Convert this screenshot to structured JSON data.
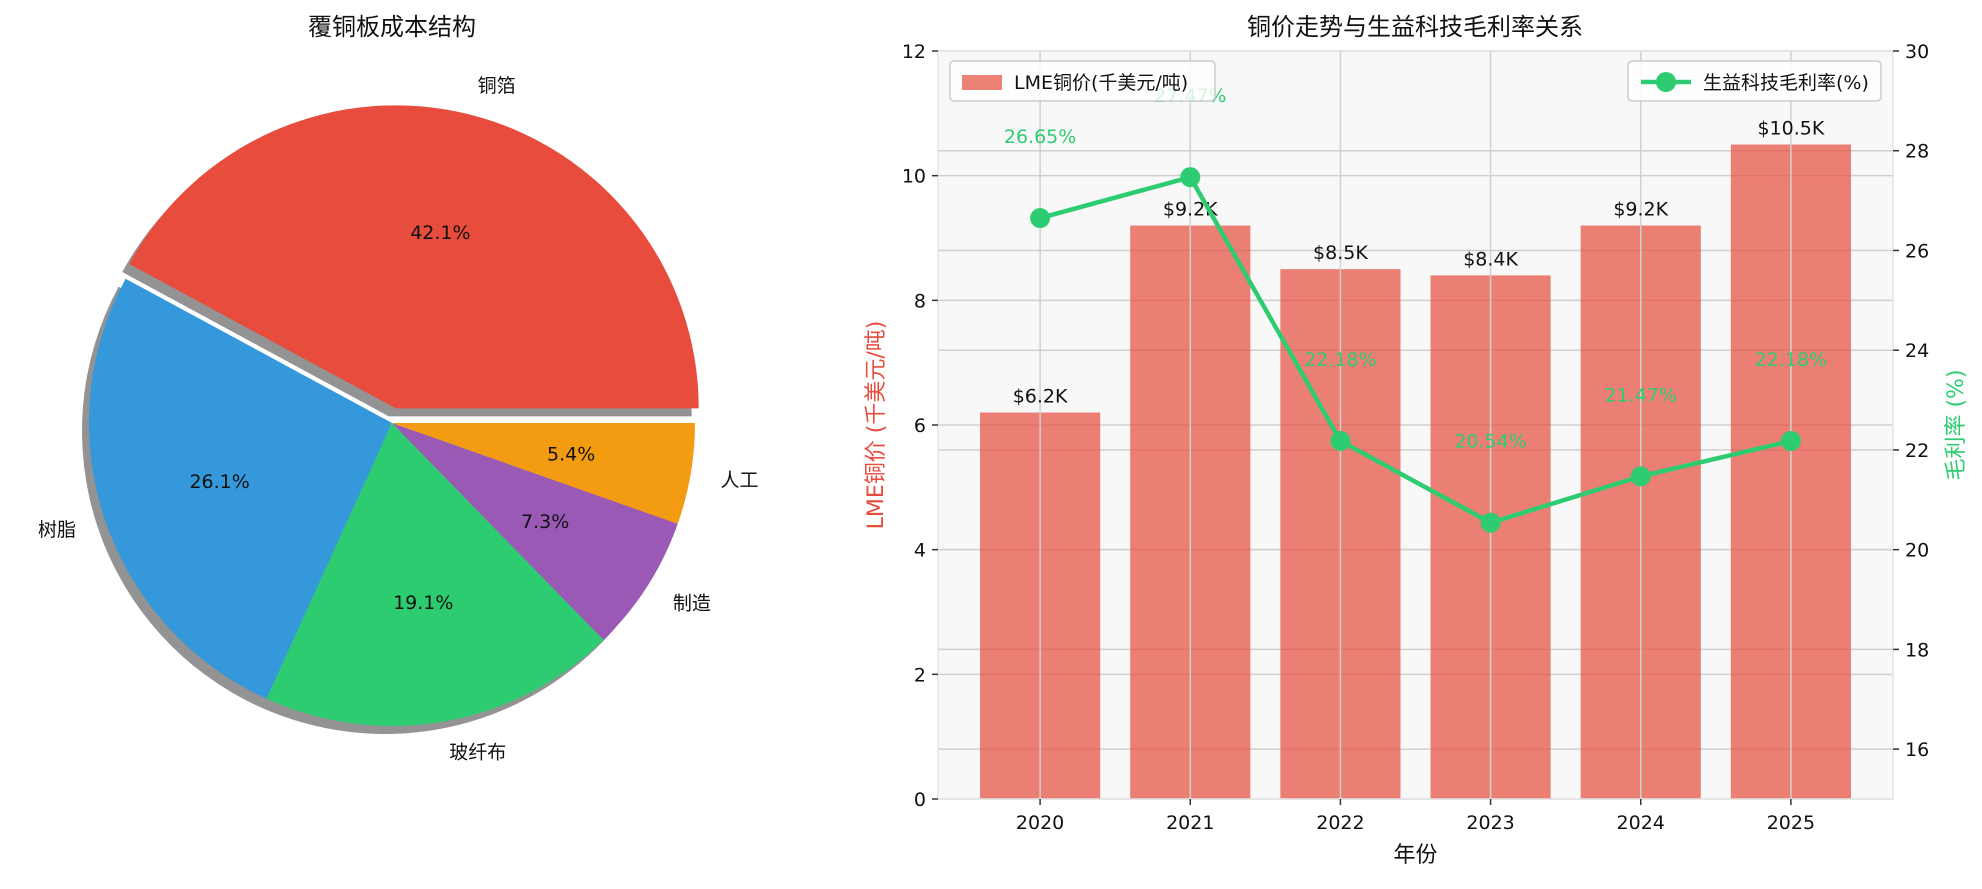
{
  "chart_data": [
    {
      "type": "pie",
      "title": "覆铜板成本结构",
      "slices": [
        {
          "label": "铜箔",
          "value": 42.1,
          "pct_label": "42.1%",
          "color": "#e74c3c",
          "exploded": true
        },
        {
          "label": "树脂",
          "value": 26.1,
          "pct_label": "26.1%",
          "color": "#3498db"
        },
        {
          "label": "玻纤布",
          "value": 19.1,
          "pct_label": "19.1%",
          "color": "#2ecc71"
        },
        {
          "label": "制造",
          "value": 7.3,
          "pct_label": "7.3%",
          "color": "#9b59b6"
        },
        {
          "label": "人工",
          "value": 5.4,
          "pct_label": "5.4%",
          "color": "#f39c12"
        }
      ],
      "shadow": true,
      "start_angle": 0
    },
    {
      "type": "bar+line",
      "title": "铜价走势与生益科技毛利率关系",
      "xlabel": "年份",
      "categories": [
        "2020",
        "2021",
        "2022",
        "2023",
        "2024",
        "2025"
      ],
      "series": [
        {
          "name": "LME铜价(千美元/吨)",
          "type": "bar",
          "axis": "left",
          "color": "#e74c3c",
          "values": [
            6.2,
            9.2,
            8.5,
            8.4,
            9.2,
            10.5
          ],
          "labels": [
            "$6.2K",
            "$9.2K",
            "$8.5K",
            "$8.4K",
            "$9.2K",
            "$10.5K"
          ]
        },
        {
          "name": "生益科技毛利率(%)",
          "type": "line",
          "axis": "right",
          "color": "#2ecc71",
          "values": [
            26.65,
            27.47,
            22.18,
            20.54,
            21.47,
            22.18
          ],
          "labels": [
            "26.65%",
            "27.47%",
            "22.18%",
            "20.54%",
            "21.47%",
            "22.18%"
          ]
        }
      ],
      "left_axis": {
        "label": "LME铜价 (千美元/吨)",
        "ylim": [
          0,
          12
        ],
        "ticks": [
          "0",
          "2",
          "4",
          "6",
          "8",
          "10",
          "12"
        ],
        "color": "#e74c3c"
      },
      "right_axis": {
        "label": "毛利率 (%)",
        "ylim": [
          15,
          30
        ],
        "ticks": [
          "16",
          "18",
          "20",
          "22",
          "24",
          "26",
          "28",
          "30"
        ],
        "color": "#2ecc71"
      },
      "grid": true,
      "legend": [
        {
          "position": "upper-left",
          "entry": "LME铜价(千美元/吨)"
        },
        {
          "position": "upper-right",
          "entry": "生益科技毛利率(%)"
        }
      ]
    }
  ]
}
